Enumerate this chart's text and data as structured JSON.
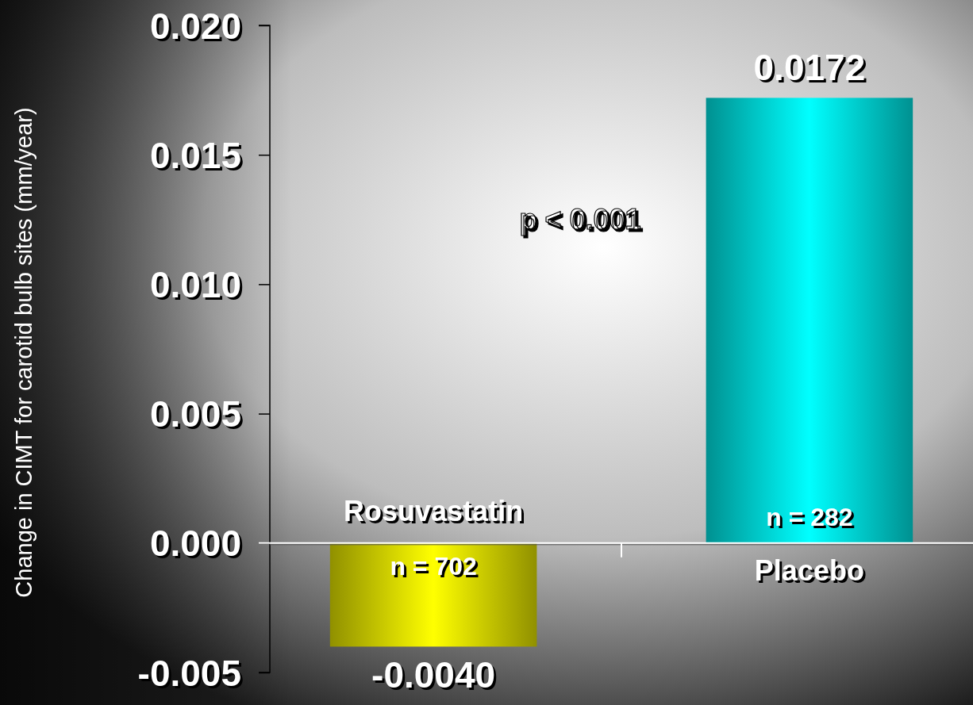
{
  "chart_data": {
    "type": "bar",
    "ylabel": "Change in CIMT for carotid bulb sites (mm/year)",
    "categories": [
      "Rosuvastatin",
      "Placebo"
    ],
    "values": [
      -0.004,
      0.0172
    ],
    "colors": [
      "#ffff00",
      "#00ffff"
    ],
    "value_labels": [
      "-0.0040",
      "0.0172"
    ],
    "ylim": [
      -0.005,
      0.02
    ],
    "yticks": [
      {
        "value": -0.005,
        "label": "-0.005"
      },
      {
        "value": 0,
        "label": "0.000"
      },
      {
        "value": 0.005,
        "label": "0.005"
      },
      {
        "value": 0.01,
        "label": "0.010"
      },
      {
        "value": 0.015,
        "label": "0.015"
      },
      {
        "value": 0.02,
        "label": "0.020"
      }
    ],
    "annotations": [
      "n = 702",
      "n = 282",
      "p < 0.001"
    ],
    "grid": false
  }
}
